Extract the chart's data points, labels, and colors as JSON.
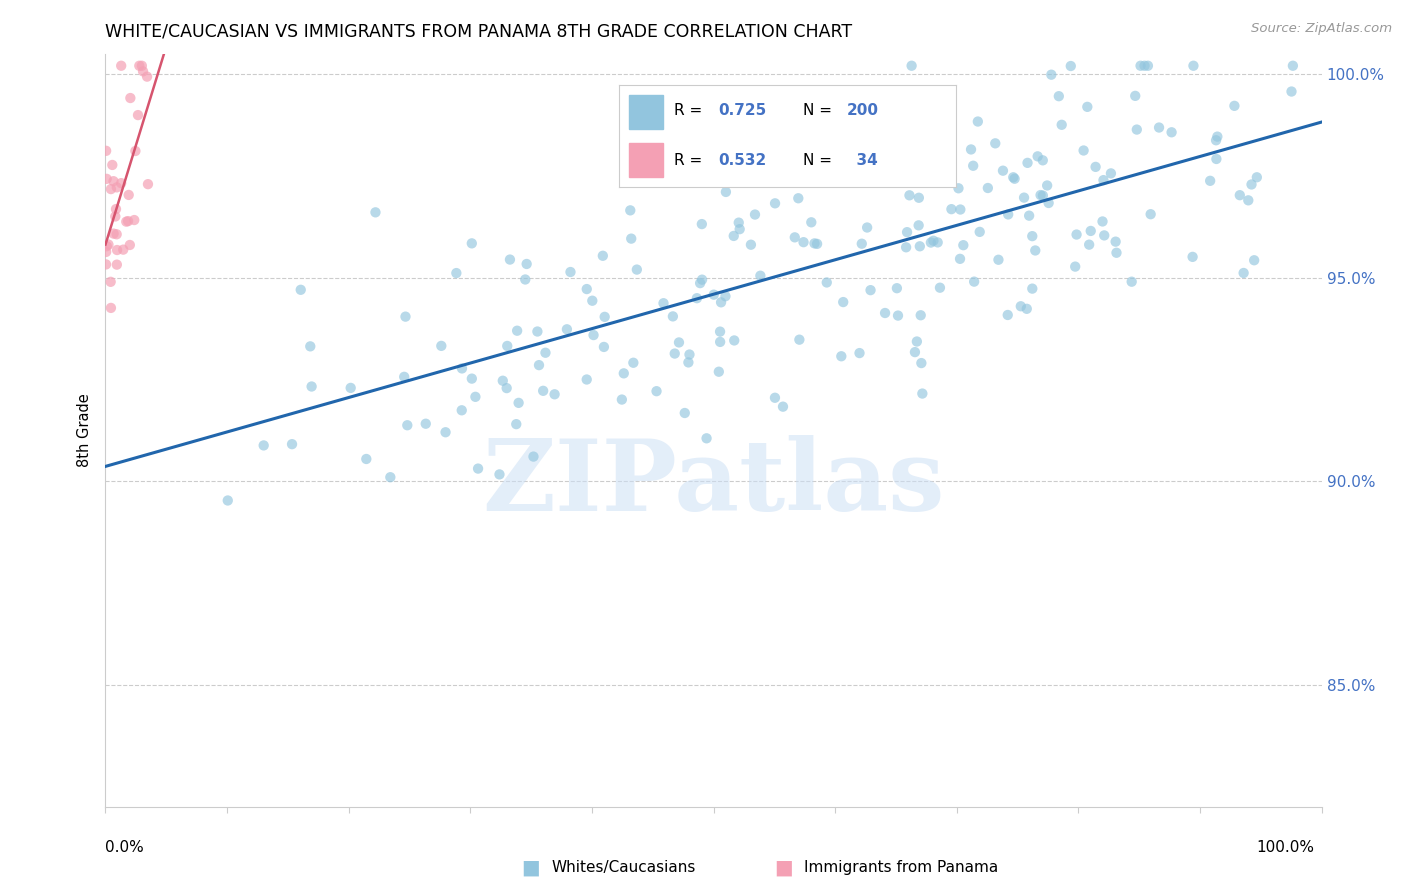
{
  "title": "WHITE/CAUCASIAN VS IMMIGRANTS FROM PANAMA 8TH GRADE CORRELATION CHART",
  "source": "Source: ZipAtlas.com",
  "ylabel": "8th Grade",
  "legend_blue_label": "Whites/Caucasians",
  "legend_pink_label": "Immigrants from Panama",
  "blue_color": "#92c5de",
  "pink_color": "#f4a0b4",
  "blue_line_color": "#2166ac",
  "pink_line_color": "#d6546e",
  "watermark_text": "ZIPatlas",
  "watermark_color": "#cce0f5",
  "blue_R": 0.725,
  "blue_N": 200,
  "pink_R": 0.532,
  "pink_N": 34,
  "xlim": [
    0.0,
    1.0
  ],
  "ylim": [
    0.82,
    1.005
  ],
  "yticks": [
    0.85,
    0.9,
    0.95,
    1.0
  ],
  "ytick_labels": [
    "85.0%",
    "90.0%",
    "95.0%",
    "100.0%"
  ],
  "accent_color": "#4472c4",
  "title_color": "#000000",
  "grid_color": "#cccccc",
  "spine_color": "#cccccc"
}
